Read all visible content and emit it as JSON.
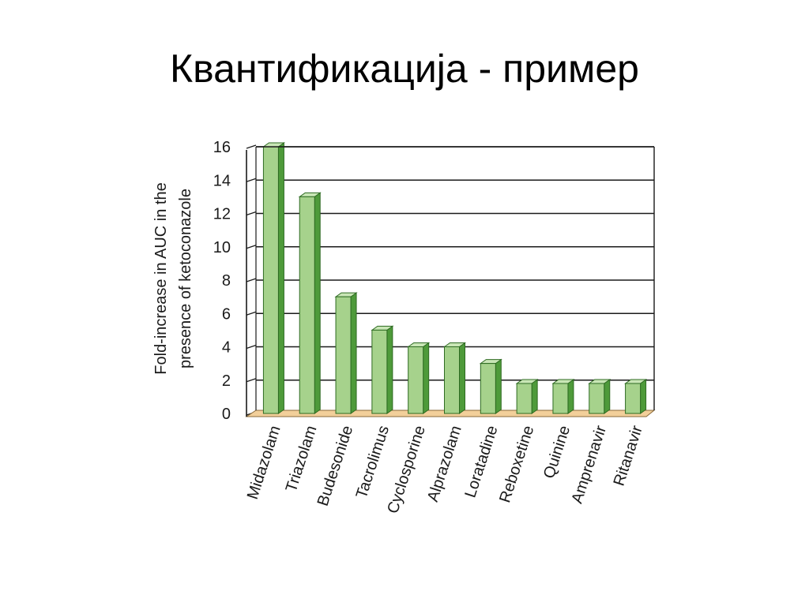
{
  "slide": {
    "title": "Квантификација - пример"
  },
  "chart_data": {
    "type": "bar",
    "title": "",
    "xlabel": "",
    "ylabel": [
      "Fold-increase in AUC in the",
      "presence of ketoconazole"
    ],
    "categories": [
      "Midazolam",
      "Triazolam",
      "Budesonide",
      "Tacrolimus",
      "Cyclosporine",
      "Alprazolam",
      "Loratadine",
      "Reboxetine",
      "Quinine",
      "Amprenavir",
      "Ritanavir"
    ],
    "values": [
      16,
      13,
      7,
      5,
      4,
      4,
      3,
      1.8,
      1.8,
      1.8,
      1.8
    ],
    "ylim": [
      0,
      16
    ],
    "yticks": [
      0,
      2,
      4,
      6,
      8,
      10,
      12,
      14,
      16
    ],
    "grid": true,
    "colors": {
      "bar_front": "#a6d28c",
      "bar_side": "#4e9a3a",
      "bar_top": "#c9e6b6",
      "bar_outline": "#2e6b22",
      "floor": "#f2cf9a",
      "grid": "#1a1a1a"
    }
  }
}
